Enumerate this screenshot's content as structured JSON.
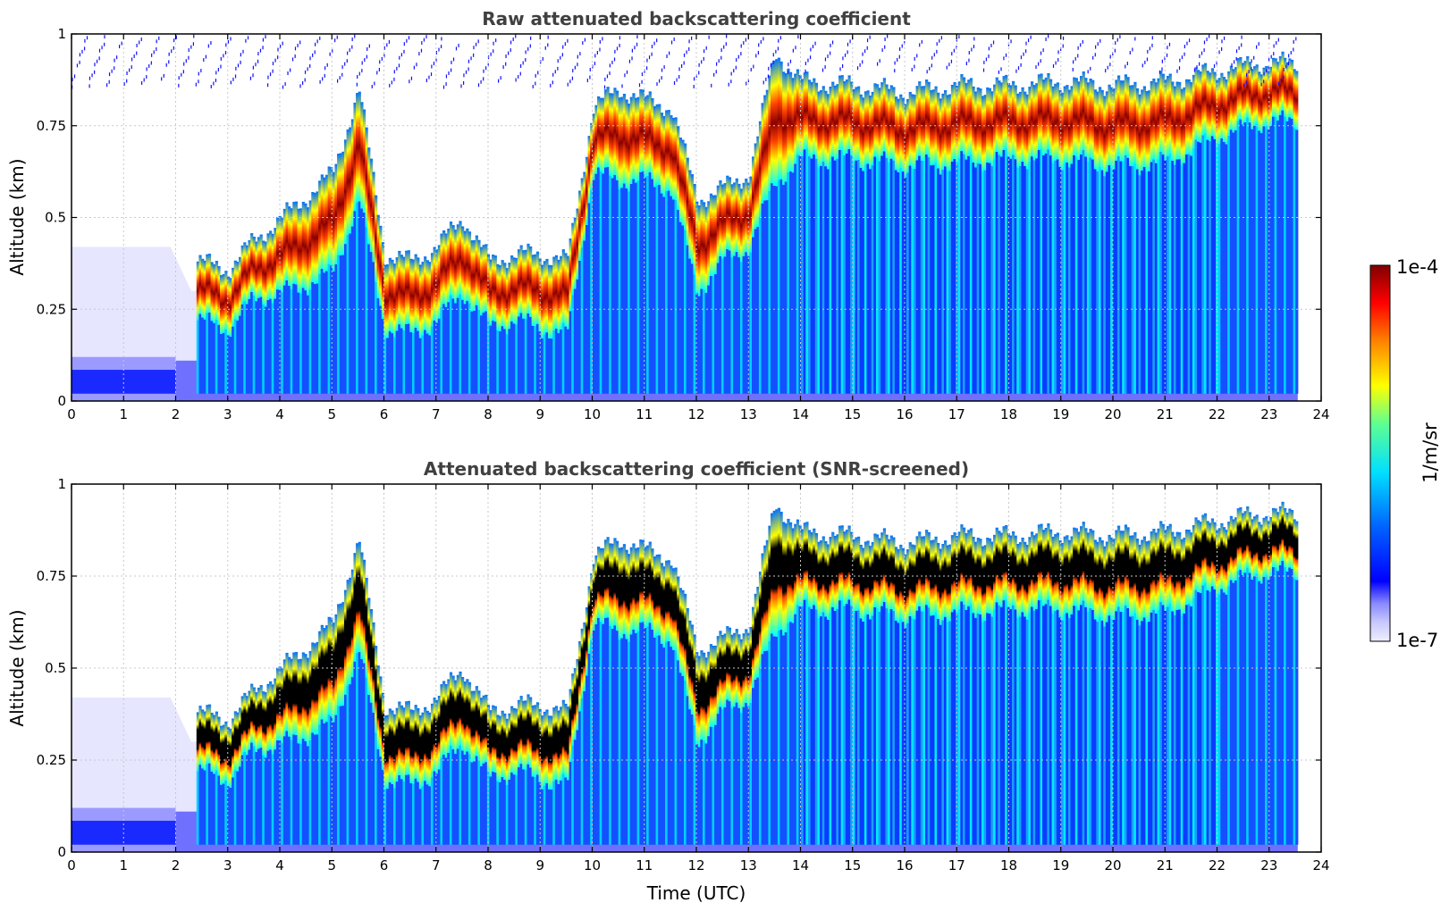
{
  "chart_data": [
    {
      "type": "heatmap",
      "title": "Raw attenuated backscattering coefficient",
      "xlabel": "",
      "ylabel": "Altitude (km)",
      "xlim": [
        0,
        24
      ],
      "ylim": [
        0,
        1
      ],
      "x_ticks": [
        "0",
        "1",
        "2",
        "3",
        "4",
        "5",
        "6",
        "7",
        "8",
        "9",
        "10",
        "11",
        "12",
        "13",
        "14",
        "15",
        "16",
        "17",
        "18",
        "19",
        "20",
        "21",
        "22",
        "23",
        "24"
      ],
      "y_ticks": [
        "0",
        "0.25",
        "0.5",
        "0.75",
        "1"
      ],
      "grid": true,
      "data_end_time": 23.55,
      "colormap": "jet",
      "cloud_base_km": [
        [
          2.4,
          0.22
        ],
        [
          3.0,
          0.2
        ],
        [
          3.5,
          0.28
        ],
        [
          4.2,
          0.3
        ],
        [
          5.0,
          0.35
        ],
        [
          5.5,
          0.55
        ],
        [
          6.0,
          0.2
        ],
        [
          6.5,
          0.18
        ],
        [
          7.0,
          0.22
        ],
        [
          7.5,
          0.3
        ],
        [
          8.0,
          0.2
        ],
        [
          8.5,
          0.22
        ],
        [
          9.0,
          0.2
        ],
        [
          9.5,
          0.18
        ],
        [
          10.0,
          0.62
        ],
        [
          10.5,
          0.6
        ],
        [
          11.0,
          0.6
        ],
        [
          11.5,
          0.58
        ],
        [
          12.0,
          0.3
        ],
        [
          12.5,
          0.38
        ],
        [
          13.0,
          0.42
        ],
        [
          13.5,
          0.6
        ],
        [
          14.0,
          0.66
        ],
        [
          15.0,
          0.66
        ],
        [
          16.0,
          0.64
        ],
        [
          17.0,
          0.65
        ],
        [
          18.0,
          0.66
        ],
        [
          19.0,
          0.66
        ],
        [
          20.0,
          0.64
        ],
        [
          21.0,
          0.65
        ],
        [
          22.0,
          0.72
        ],
        [
          22.8,
          0.76
        ],
        [
          23.0,
          0.76
        ]
      ],
      "cloud_top_km": [
        [
          2.4,
          0.38
        ],
        [
          3.0,
          0.36
        ],
        [
          3.5,
          0.44
        ],
        [
          4.2,
          0.52
        ],
        [
          5.0,
          0.62
        ],
        [
          5.5,
          0.85
        ],
        [
          6.0,
          0.4
        ],
        [
          6.5,
          0.38
        ],
        [
          7.0,
          0.42
        ],
        [
          7.5,
          0.5
        ],
        [
          8.0,
          0.38
        ],
        [
          8.5,
          0.4
        ],
        [
          9.0,
          0.4
        ],
        [
          9.5,
          0.38
        ],
        [
          10.0,
          0.8
        ],
        [
          10.5,
          0.85
        ],
        [
          11.0,
          0.82
        ],
        [
          11.5,
          0.8
        ],
        [
          12.0,
          0.55
        ],
        [
          12.5,
          0.58
        ],
        [
          13.0,
          0.62
        ],
        [
          13.5,
          0.95
        ],
        [
          14.0,
          0.87
        ],
        [
          15.0,
          0.86
        ],
        [
          16.0,
          0.84
        ],
        [
          17.0,
          0.86
        ],
        [
          18.0,
          0.86
        ],
        [
          19.0,
          0.87
        ],
        [
          20.0,
          0.86
        ],
        [
          21.0,
          0.87
        ],
        [
          22.0,
          0.9
        ],
        [
          22.8,
          0.92
        ],
        [
          23.0,
          0.92
        ]
      ]
    },
    {
      "type": "heatmap",
      "title": "Attenuated backscattering coefficient (SNR-screened)",
      "xlabel": "Time (UTC)",
      "ylabel": "Altitude (km)",
      "xlim": [
        0,
        24
      ],
      "ylim": [
        0,
        1
      ],
      "x_ticks": [
        "0",
        "1",
        "2",
        "3",
        "4",
        "5",
        "6",
        "7",
        "8",
        "9",
        "10",
        "11",
        "12",
        "13",
        "14",
        "15",
        "16",
        "17",
        "18",
        "19",
        "20",
        "21",
        "22",
        "23",
        "24"
      ],
      "y_ticks": [
        "0",
        "0.25",
        "0.5",
        "0.75",
        "1"
      ],
      "grid": true,
      "data_end_time": 23.55,
      "colormap": "jet",
      "saturated_color": "#000000"
    }
  ],
  "colorbar": {
    "min_label": "1e-7",
    "max_label": "1e-4",
    "unit": "1/m/sr",
    "colors": [
      "#eeeeff",
      "#d0d0ff",
      "#b0b0ff",
      "#8080ff",
      "#0000ff",
      "#0080ff",
      "#00ffff",
      "#80ff80",
      "#ffff00",
      "#ff8000",
      "#ff0000",
      "#800000"
    ]
  }
}
